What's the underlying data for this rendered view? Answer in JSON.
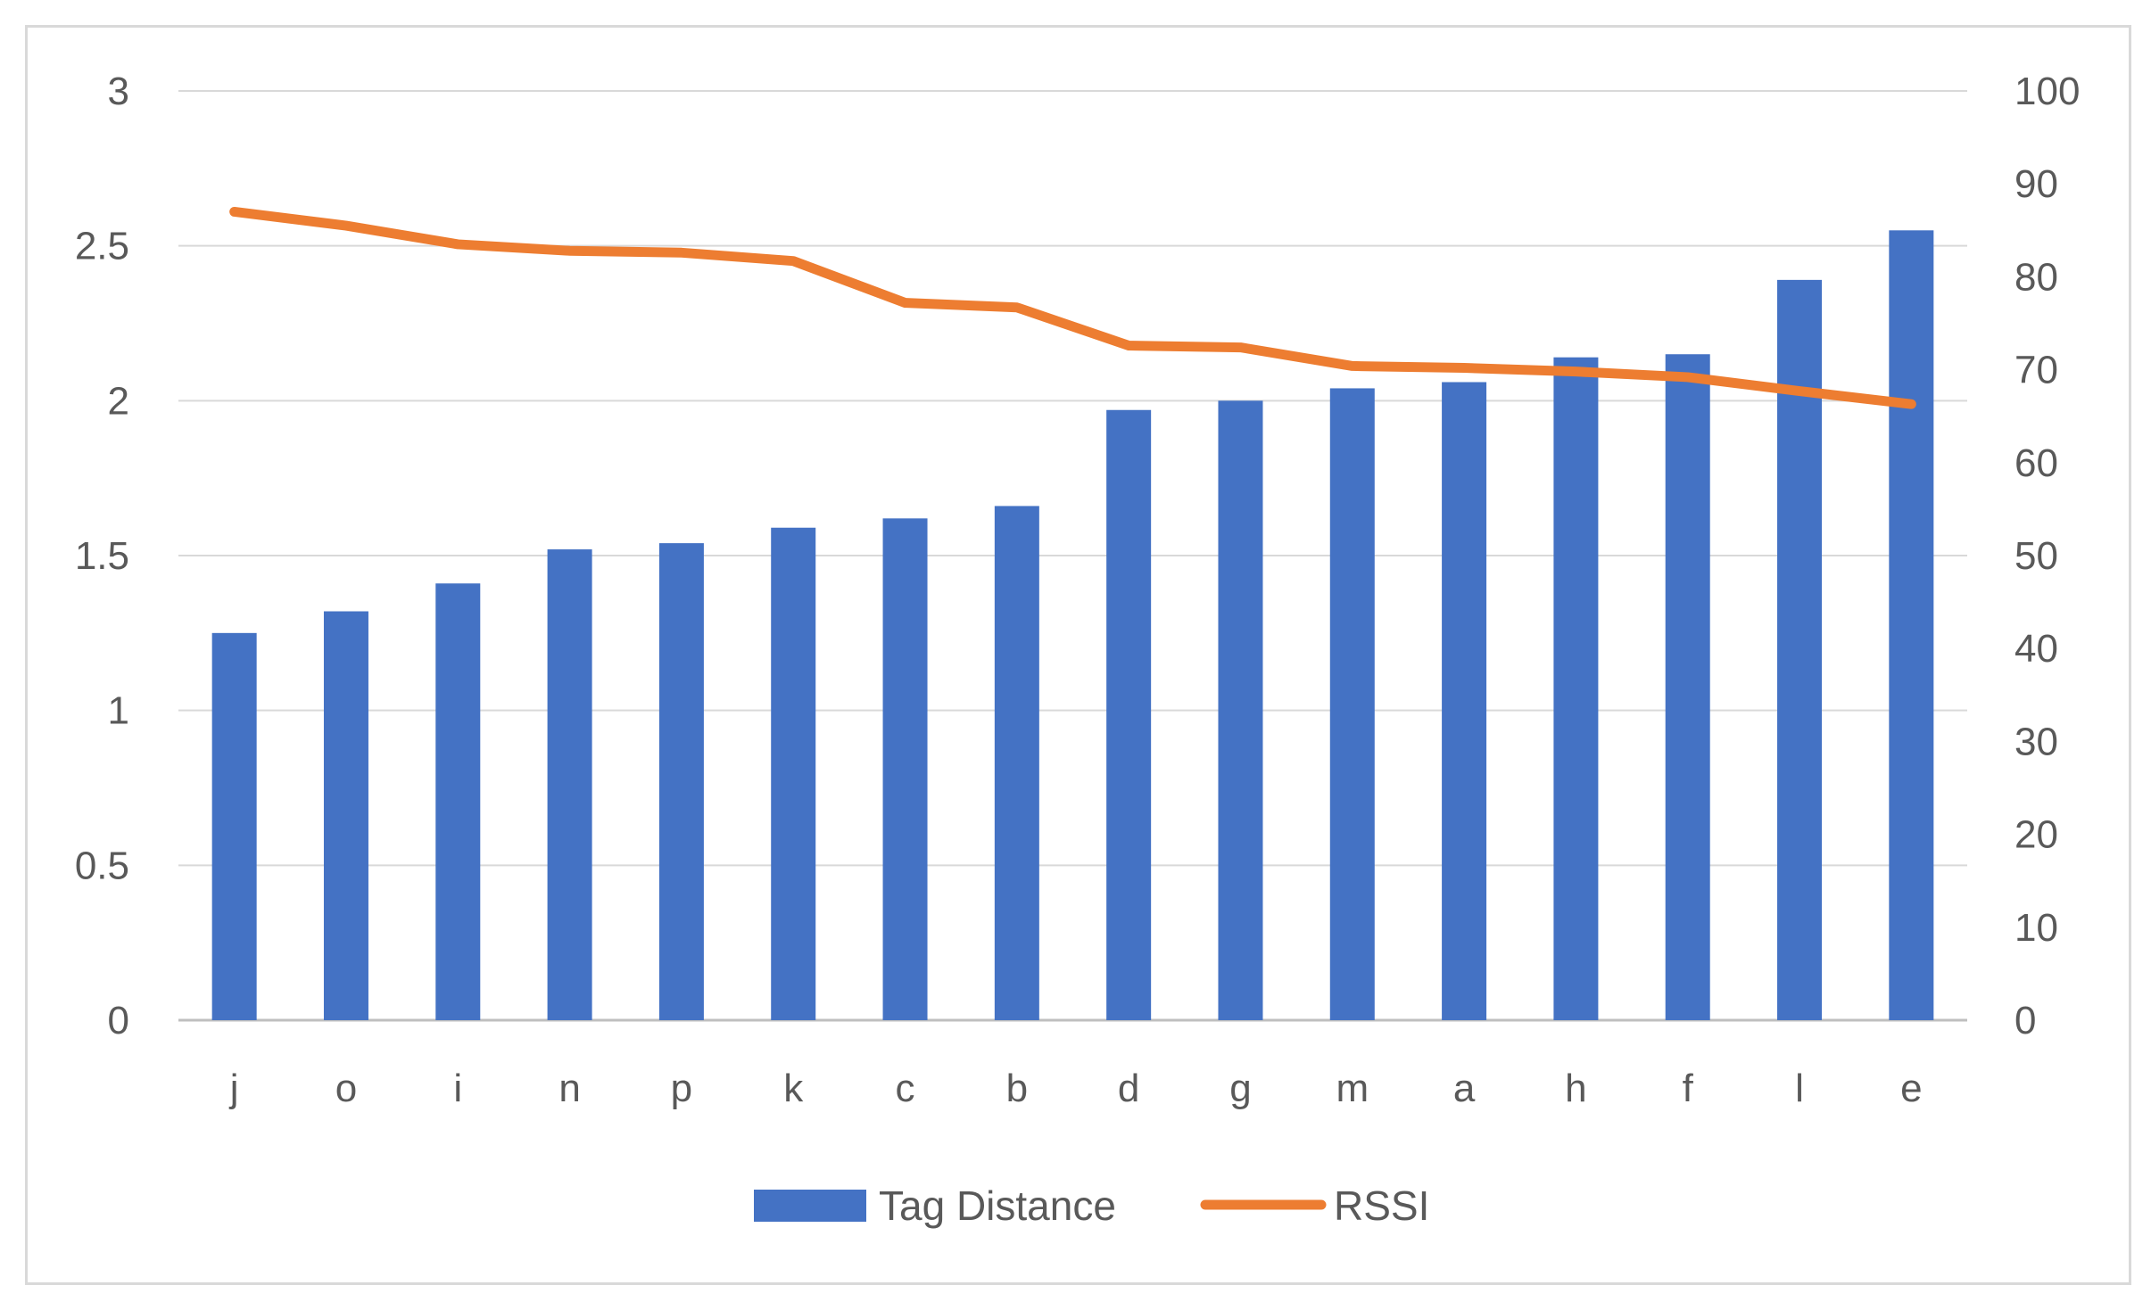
{
  "chart_data": {
    "type": "bar",
    "categories": [
      "j",
      "o",
      "i",
      "n",
      "p",
      "k",
      "c",
      "b",
      "d",
      "g",
      "m",
      "a",
      "h",
      "f",
      "l",
      "e"
    ],
    "series": [
      {
        "name": "Tag Distance",
        "type": "bar",
        "axis": "left",
        "color": "#4472C4",
        "values": [
          1.25,
          1.32,
          1.41,
          1.52,
          1.54,
          1.59,
          1.62,
          1.66,
          1.97,
          2.0,
          2.04,
          2.06,
          2.14,
          2.15,
          2.39,
          2.55
        ]
      },
      {
        "name": "RSSI",
        "type": "line",
        "axis": "right",
        "color": "#ED7D31",
        "values": [
          87,
          85.5,
          83.5,
          82.8,
          82.6,
          81.7,
          77.2,
          76.7,
          72.6,
          72.4,
          70.4,
          70.2,
          69.8,
          69.2,
          67.7,
          66.3
        ]
      }
    ],
    "y_left": {
      "ylim": [
        0,
        3
      ],
      "ticks": [
        "0",
        "0.5",
        "1",
        "1.5",
        "2",
        "2.5",
        "3"
      ]
    },
    "y_right": {
      "ylim": [
        0,
        100
      ],
      "ticks": [
        "0",
        "10",
        "20",
        "30",
        "40",
        "50",
        "60",
        "70",
        "80",
        "90",
        "100"
      ]
    },
    "title": "",
    "xlabel": "",
    "ylabel": "",
    "grid": true,
    "legend": "bottom"
  }
}
